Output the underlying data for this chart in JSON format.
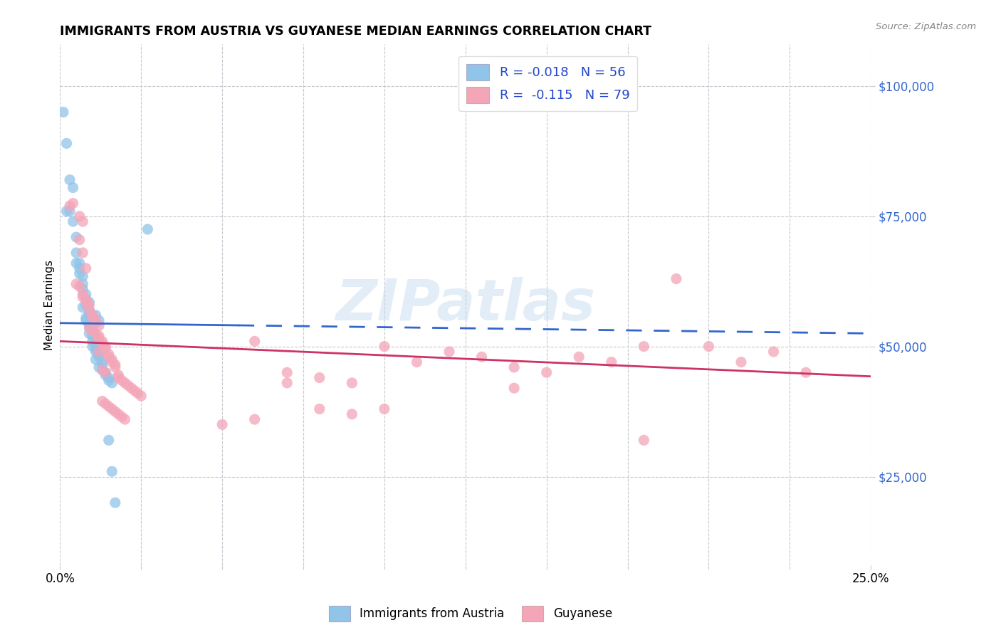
{
  "title": "IMMIGRANTS FROM AUSTRIA VS GUYANESE MEDIAN EARNINGS CORRELATION CHART",
  "source": "Source: ZipAtlas.com",
  "ylabel": "Median Earnings",
  "yticks": [
    25000,
    50000,
    75000,
    100000
  ],
  "ytick_labels": [
    "$25,000",
    "$50,000",
    "$75,000",
    "$100,000"
  ],
  "xmin": 0.0,
  "xmax": 0.25,
  "ymin": 8000,
  "ymax": 108000,
  "legend_labels_bottom": [
    "Immigrants from Austria",
    "Guyanese"
  ],
  "blue_scatter_color": "#90c4e8",
  "pink_scatter_color": "#f4a5b8",
  "blue_line_color": "#3366cc",
  "pink_line_color": "#cc3366",
  "blue_line_solid_end": 0.055,
  "blue_intercept": 54500,
  "blue_slope": -8000,
  "pink_intercept": 51000,
  "pink_slope": -27000,
  "watermark": "ZIPatlas",
  "blue_points": [
    [
      0.001,
      95000
    ],
    [
      0.003,
      82000
    ],
    [
      0.004,
      80500
    ],
    [
      0.002,
      76000
    ],
    [
      0.004,
      74000
    ],
    [
      0.005,
      71000
    ],
    [
      0.005,
      68000
    ],
    [
      0.006,
      66000
    ],
    [
      0.003,
      76000
    ],
    [
      0.006,
      65000
    ],
    [
      0.006,
      64000
    ],
    [
      0.007,
      63500
    ],
    [
      0.007,
      62000
    ],
    [
      0.007,
      61000
    ],
    [
      0.008,
      60000
    ],
    [
      0.008,
      59000
    ],
    [
      0.009,
      58500
    ],
    [
      0.008,
      58000
    ],
    [
      0.007,
      57500
    ],
    [
      0.009,
      57000
    ],
    [
      0.009,
      56500
    ],
    [
      0.009,
      56000
    ],
    [
      0.008,
      55500
    ],
    [
      0.008,
      55000
    ],
    [
      0.009,
      54500
    ],
    [
      0.009,
      54000
    ],
    [
      0.01,
      53500
    ],
    [
      0.01,
      53000
    ],
    [
      0.009,
      52500
    ],
    [
      0.01,
      52000
    ],
    [
      0.011,
      51500
    ],
    [
      0.01,
      51000
    ],
    [
      0.011,
      50500
    ],
    [
      0.01,
      50000
    ],
    [
      0.011,
      49500
    ],
    [
      0.011,
      49000
    ],
    [
      0.012,
      48500
    ],
    [
      0.012,
      48000
    ],
    [
      0.011,
      47500
    ],
    [
      0.013,
      47000
    ],
    [
      0.013,
      46500
    ],
    [
      0.012,
      46000
    ],
    [
      0.013,
      45500
    ],
    [
      0.014,
      45000
    ],
    [
      0.014,
      44500
    ],
    [
      0.015,
      44000
    ],
    [
      0.015,
      43500
    ],
    [
      0.016,
      43000
    ],
    [
      0.027,
      72500
    ],
    [
      0.015,
      32000
    ],
    [
      0.016,
      26000
    ],
    [
      0.017,
      20000
    ],
    [
      0.002,
      89000
    ],
    [
      0.005,
      66000
    ],
    [
      0.011,
      56000
    ],
    [
      0.012,
      55000
    ]
  ],
  "pink_points": [
    [
      0.003,
      77000
    ],
    [
      0.004,
      77500
    ],
    [
      0.006,
      75000
    ],
    [
      0.007,
      74000
    ],
    [
      0.006,
      70500
    ],
    [
      0.007,
      68000
    ],
    [
      0.008,
      65000
    ],
    [
      0.005,
      62000
    ],
    [
      0.006,
      61500
    ],
    [
      0.007,
      60000
    ],
    [
      0.007,
      59500
    ],
    [
      0.008,
      59000
    ],
    [
      0.008,
      58500
    ],
    [
      0.009,
      58000
    ],
    [
      0.009,
      57000
    ],
    [
      0.01,
      56000
    ],
    [
      0.01,
      55500
    ],
    [
      0.011,
      55000
    ],
    [
      0.011,
      54500
    ],
    [
      0.012,
      54000
    ],
    [
      0.009,
      53500
    ],
    [
      0.01,
      53000
    ],
    [
      0.011,
      52500
    ],
    [
      0.012,
      52000
    ],
    [
      0.012,
      51500
    ],
    [
      0.013,
      51000
    ],
    [
      0.013,
      50500
    ],
    [
      0.014,
      50000
    ],
    [
      0.014,
      49500
    ],
    [
      0.012,
      49000
    ],
    [
      0.015,
      48500
    ],
    [
      0.015,
      48000
    ],
    [
      0.016,
      47500
    ],
    [
      0.016,
      47000
    ],
    [
      0.017,
      46500
    ],
    [
      0.017,
      46000
    ],
    [
      0.013,
      45500
    ],
    [
      0.014,
      45000
    ],
    [
      0.018,
      44500
    ],
    [
      0.018,
      44000
    ],
    [
      0.019,
      43500
    ],
    [
      0.02,
      43000
    ],
    [
      0.021,
      42500
    ],
    [
      0.022,
      42000
    ],
    [
      0.023,
      41500
    ],
    [
      0.024,
      41000
    ],
    [
      0.025,
      40500
    ],
    [
      0.013,
      39500
    ],
    [
      0.014,
      39000
    ],
    [
      0.015,
      38500
    ],
    [
      0.016,
      38000
    ],
    [
      0.017,
      37500
    ],
    [
      0.018,
      37000
    ],
    [
      0.019,
      36500
    ],
    [
      0.02,
      36000
    ],
    [
      0.06,
      51000
    ],
    [
      0.07,
      45000
    ],
    [
      0.08,
      44000
    ],
    [
      0.09,
      43000
    ],
    [
      0.1,
      50000
    ],
    [
      0.11,
      47000
    ],
    [
      0.12,
      49000
    ],
    [
      0.13,
      48000
    ],
    [
      0.14,
      46000
    ],
    [
      0.15,
      45000
    ],
    [
      0.16,
      48000
    ],
    [
      0.17,
      47000
    ],
    [
      0.18,
      50000
    ],
    [
      0.19,
      63000
    ],
    [
      0.2,
      50000
    ],
    [
      0.21,
      47000
    ],
    [
      0.22,
      49000
    ],
    [
      0.23,
      45000
    ],
    [
      0.05,
      35000
    ],
    [
      0.06,
      36000
    ],
    [
      0.07,
      43000
    ],
    [
      0.08,
      38000
    ],
    [
      0.09,
      37000
    ],
    [
      0.1,
      38000
    ],
    [
      0.14,
      42000
    ],
    [
      0.18,
      32000
    ]
  ]
}
